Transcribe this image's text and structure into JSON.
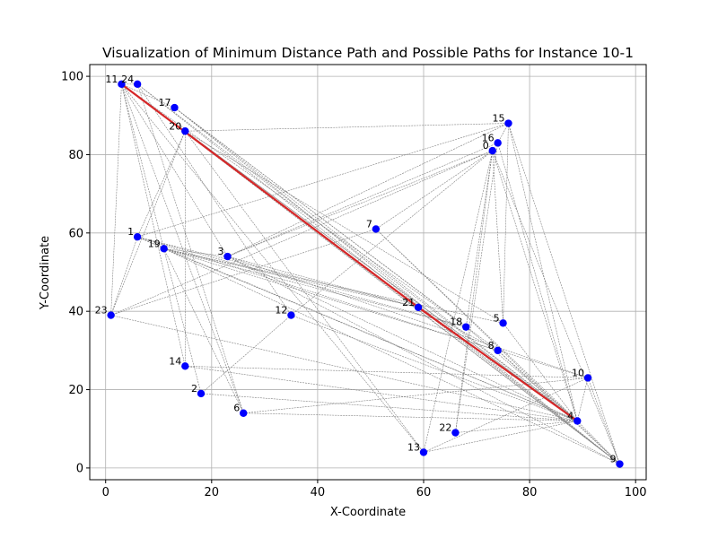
{
  "chart_data": {
    "type": "scatter",
    "title": "Visualization of Minimum Distance Path and Possible Paths for Instance 10-1",
    "xlabel": "X-Coordinate",
    "ylabel": "Y-Coordinate",
    "xlim": [
      -3,
      102
    ],
    "ylim": [
      -3,
      103
    ],
    "xticks": [
      0,
      20,
      40,
      60,
      80,
      100
    ],
    "yticks": [
      0,
      20,
      40,
      60,
      80,
      100
    ],
    "grid": true,
    "colors": {
      "points": "#0000ff",
      "min_path": "#d62728",
      "possible_paths": "#808080",
      "grid": "#b0b0b0"
    },
    "points": [
      {
        "label": "0",
        "x": 73,
        "y": 81
      },
      {
        "label": "1",
        "x": 6,
        "y": 59
      },
      {
        "label": "2",
        "x": 18,
        "y": 19
      },
      {
        "label": "3",
        "x": 23,
        "y": 54
      },
      {
        "label": "4",
        "x": 89,
        "y": 12
      },
      {
        "label": "5",
        "x": 75,
        "y": 37
      },
      {
        "label": "6",
        "x": 26,
        "y": 14
      },
      {
        "label": "7",
        "x": 51,
        "y": 61
      },
      {
        "label": "8",
        "x": 74,
        "y": 30
      },
      {
        "label": "9",
        "x": 97,
        "y": 1
      },
      {
        "label": "10",
        "x": 91,
        "y": 23
      },
      {
        "label": "11",
        "x": 3,
        "y": 98
      },
      {
        "label": "12",
        "x": 35,
        "y": 39
      },
      {
        "label": "13",
        "x": 60,
        "y": 4
      },
      {
        "label": "14",
        "x": 15,
        "y": 26
      },
      {
        "label": "15",
        "x": 76,
        "y": 88
      },
      {
        "label": "16",
        "x": 74,
        "y": 83
      },
      {
        "label": "17",
        "x": 13,
        "y": 92
      },
      {
        "label": "18",
        "x": 68,
        "y": 36
      },
      {
        "label": "19",
        "x": 11,
        "y": 56
      },
      {
        "label": "20",
        "x": 15,
        "y": 86
      },
      {
        "label": "21",
        "x": 59,
        "y": 41
      },
      {
        "label": "22",
        "x": 66,
        "y": 9
      },
      {
        "label": "23",
        "x": 1,
        "y": 39
      },
      {
        "label": "24",
        "x": 6,
        "y": 98
      }
    ],
    "min_path": [
      "11",
      "21",
      "4"
    ],
    "possible_paths": [
      [
        "11",
        "24"
      ],
      [
        "11",
        "17"
      ],
      [
        "11",
        "20"
      ],
      [
        "11",
        "23"
      ],
      [
        "11",
        "14"
      ],
      [
        "11",
        "2"
      ],
      [
        "11",
        "3"
      ],
      [
        "11",
        "6"
      ],
      [
        "11",
        "18"
      ],
      [
        "11",
        "13"
      ],
      [
        "11",
        "4"
      ],
      [
        "11",
        "9"
      ],
      [
        "24",
        "4"
      ],
      [
        "24",
        "12"
      ],
      [
        "24",
        "6"
      ],
      [
        "24",
        "9"
      ],
      [
        "17",
        "4"
      ],
      [
        "17",
        "8"
      ],
      [
        "17",
        "9"
      ],
      [
        "17",
        "18"
      ],
      [
        "20",
        "15"
      ],
      [
        "20",
        "23"
      ],
      [
        "20",
        "14"
      ],
      [
        "20",
        "4"
      ],
      [
        "20",
        "5"
      ],
      [
        "20",
        "13"
      ],
      [
        "20",
        "9"
      ],
      [
        "20",
        "1"
      ],
      [
        "15",
        "3"
      ],
      [
        "15",
        "1"
      ],
      [
        "15",
        "16"
      ],
      [
        "15",
        "4"
      ],
      [
        "15",
        "9"
      ],
      [
        "15",
        "5"
      ],
      [
        "16",
        "0"
      ],
      [
        "16",
        "3"
      ],
      [
        "16",
        "4"
      ],
      [
        "16",
        "22"
      ],
      [
        "0",
        "23"
      ],
      [
        "0",
        "3"
      ],
      [
        "0",
        "12"
      ],
      [
        "0",
        "13"
      ],
      [
        "0",
        "18"
      ],
      [
        "0",
        "22"
      ],
      [
        "0",
        "4"
      ],
      [
        "0",
        "9"
      ],
      [
        "0",
        "5"
      ],
      [
        "0",
        "7"
      ],
      [
        "7",
        "23"
      ],
      [
        "7",
        "4"
      ],
      [
        "7",
        "9"
      ],
      [
        "1",
        "19"
      ],
      [
        "1",
        "23"
      ],
      [
        "1",
        "8"
      ],
      [
        "1",
        "21"
      ],
      [
        "1",
        "4"
      ],
      [
        "1",
        "18"
      ],
      [
        "19",
        "3"
      ],
      [
        "19",
        "5"
      ],
      [
        "19",
        "21"
      ],
      [
        "19",
        "18"
      ],
      [
        "19",
        "6"
      ],
      [
        "19",
        "4"
      ],
      [
        "19",
        "10"
      ],
      [
        "19",
        "9"
      ],
      [
        "3",
        "4"
      ],
      [
        "3",
        "10"
      ],
      [
        "3",
        "9"
      ],
      [
        "3",
        "21"
      ],
      [
        "12",
        "4"
      ],
      [
        "12",
        "2"
      ],
      [
        "21",
        "9"
      ],
      [
        "21",
        "8"
      ],
      [
        "21",
        "4"
      ],
      [
        "18",
        "4"
      ],
      [
        "5",
        "4"
      ],
      [
        "8",
        "4"
      ],
      [
        "8",
        "9"
      ],
      [
        "10",
        "4"
      ],
      [
        "10",
        "6"
      ],
      [
        "10",
        "14"
      ],
      [
        "10",
        "13"
      ],
      [
        "10",
        "9"
      ],
      [
        "14",
        "4"
      ],
      [
        "2",
        "4"
      ],
      [
        "6",
        "4"
      ],
      [
        "13",
        "4"
      ],
      [
        "22",
        "4"
      ],
      [
        "23",
        "4"
      ],
      [
        "4",
        "9"
      ]
    ]
  }
}
